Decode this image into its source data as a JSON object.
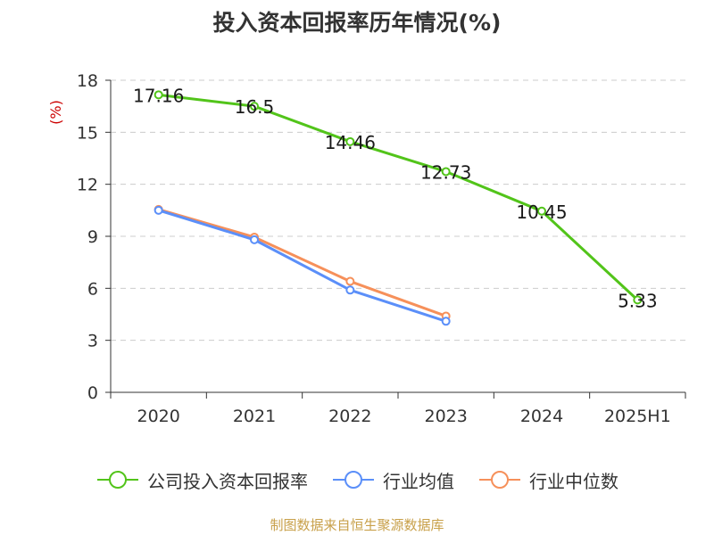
{
  "chart_data": {
    "type": "line",
    "title": "投入资本回报率历年情况(%)",
    "ylabel": "(%)",
    "xlabel": "",
    "categories": [
      "2020",
      "2021",
      "2022",
      "2023",
      "2024",
      "2025H1"
    ],
    "ylim": [
      0,
      18
    ],
    "yticks": [
      0,
      3,
      6,
      9,
      12,
      15,
      18
    ],
    "grid": true,
    "legend_position": "bottom",
    "series": [
      {
        "name": "公司投入资本回报率",
        "color": "#52c41a",
        "values": [
          17.16,
          16.5,
          14.46,
          12.73,
          10.45,
          5.33
        ],
        "labels": [
          "17.16",
          "16.5",
          "14.46",
          "12.73",
          "10.45",
          "5.33"
        ]
      },
      {
        "name": "行业均值",
        "color": "#5b8ff9",
        "values": [
          10.5,
          8.8,
          5.9,
          4.1,
          null,
          null
        ]
      },
      {
        "name": "行业中位数",
        "color": "#f6905a",
        "values": [
          10.55,
          8.95,
          6.4,
          4.4,
          null,
          null
        ]
      }
    ]
  },
  "source": "制图数据来自恒生聚源数据库"
}
